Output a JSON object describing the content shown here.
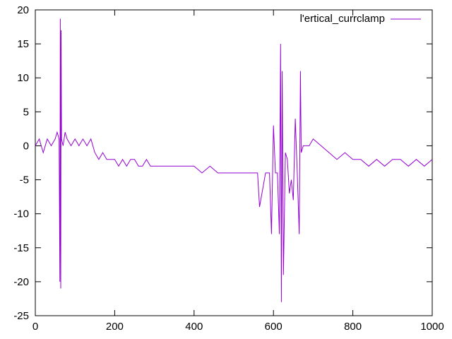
{
  "chart_data": {
    "type": "line",
    "title": "",
    "xlabel": "",
    "ylabel": "",
    "xlim": [
      0,
      1000
    ],
    "ylim": [
      -25,
      20
    ],
    "xticks": [
      0,
      200,
      400,
      600,
      800,
      1000
    ],
    "yticks": [
      -25,
      -20,
      -15,
      -10,
      -5,
      0,
      5,
      10,
      15,
      20
    ],
    "grid": false,
    "legend": "top-right",
    "series": [
      {
        "name": "l'ertical_currclamp",
        "color": "#9400d3",
        "x": [
          0,
          10,
          20,
          30,
          40,
          50,
          55,
          60,
          62,
          63,
          64,
          65,
          66,
          70,
          75,
          80,
          90,
          100,
          110,
          120,
          130,
          140,
          150,
          160,
          170,
          180,
          190,
          200,
          210,
          220,
          230,
          240,
          250,
          260,
          270,
          280,
          290,
          300,
          320,
          340,
          360,
          380,
          400,
          420,
          440,
          460,
          480,
          500,
          520,
          540,
          560,
          565,
          580,
          590,
          595,
          600,
          605,
          610,
          615,
          618,
          620,
          622,
          625,
          630,
          635,
          640,
          645,
          650,
          655,
          660,
          665,
          668,
          670,
          675,
          680,
          690,
          700,
          720,
          740,
          760,
          780,
          800,
          820,
          840,
          860,
          880,
          900,
          920,
          940,
          960,
          980,
          1000
        ],
        "y": [
          0,
          1,
          -1,
          1,
          0,
          1,
          2,
          1,
          -20,
          18.7,
          -21,
          17,
          1,
          0,
          2,
          1,
          0,
          1,
          0,
          1,
          0,
          1,
          -1,
          -2,
          -1,
          -2,
          -2,
          -2,
          -3,
          -2,
          -3,
          -2,
          -2,
          -3,
          -3,
          -2,
          -3,
          -3,
          -3,
          -3,
          -3,
          -3,
          -3,
          -4,
          -3,
          -4,
          -4,
          -4,
          -4,
          -4,
          -4,
          -9,
          -4,
          -4,
          -13,
          3,
          -4,
          -4,
          -13,
          15,
          -23,
          11,
          -19,
          -1,
          -2,
          -7,
          -5,
          -8,
          4,
          -4,
          -13,
          11,
          -1,
          0,
          0,
          0,
          1,
          0,
          -1,
          -2,
          -1,
          -2,
          -2,
          -3,
          -2,
          -3,
          -2,
          -2,
          -3,
          -2,
          -3,
          -2
        ]
      }
    ]
  }
}
